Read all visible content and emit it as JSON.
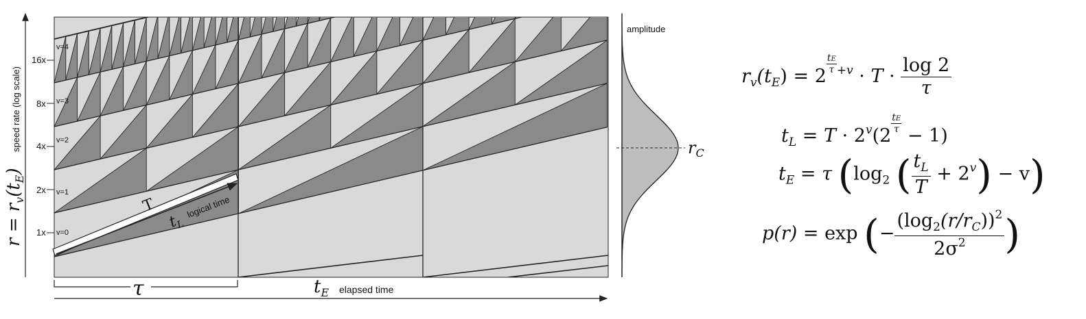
{
  "diagram": {
    "y_axis_label": "r = r",
    "y_axis_label_sub": "v",
    "y_axis_label_arg": "(t",
    "y_axis_label_arg_sub": "E",
    "y_axis_label_close": ")",
    "y_axis_caption": "speed rate (log scale)",
    "y_ticks": [
      "16x",
      "8x",
      "4x",
      "2x",
      "1x"
    ],
    "levels": [
      "v=4",
      "v=3",
      "v=2",
      "v=1",
      "v=0"
    ],
    "tau_label": "τ",
    "x_axis_label": "t",
    "x_axis_label_sub": "E",
    "x_axis_caption": "elapsed time",
    "T_label": "T",
    "tL_label": "t",
    "tL_label_sub": "L",
    "tL_caption": "logical time",
    "amplitude_label": "amplitude",
    "rc_label": "r",
    "rc_label_sub": "C",
    "colors": {
      "band": "#d9d9d9",
      "ramp": "#8a8a8a",
      "line": "#222222"
    }
  },
  "equations": {
    "eq1": {
      "lhs": "r",
      "lhs_sub": "v",
      "lhs_arg": "(t",
      "lhs_arg_sub": "E",
      "lhs_close": ")",
      "eq": "=",
      "base": "2",
      "exp_num": "t",
      "exp_num_sub": "E",
      "exp_den": "τ",
      "exp_rest": "+v",
      "dot1": "·",
      "T": "T",
      "dot2": "·",
      "num": "log 2",
      "den": "τ"
    },
    "eq2": {
      "lhs": "t",
      "lhs_sub": "L",
      "eq": "=",
      "T": "T",
      "dot": "·",
      "base": "2",
      "base_sup": "v",
      "open": "(2",
      "exp_num": "t",
      "exp_num_sub": "E",
      "exp_den": "τ",
      "rest": "− 1)"
    },
    "eq3": {
      "lhs": "t",
      "lhs_sub": "E",
      "eq": "=",
      "tau": "τ",
      "log": "log",
      "log_sub": "2",
      "num": "t",
      "num_sub": "L",
      "den": "T",
      "plus": "+ 2",
      "plus_sup": "v",
      "minus": "− v"
    },
    "eq4": {
      "lhs": "p(r)",
      "eq": "=",
      "exp": "exp",
      "minus": "−",
      "num": "(log",
      "num_sub": "2",
      "num_rest": "(r/r",
      "num_rest_sub": "C",
      "num_close": "))",
      "num_sup": "2",
      "den": "2σ",
      "den_sup": "2"
    }
  }
}
